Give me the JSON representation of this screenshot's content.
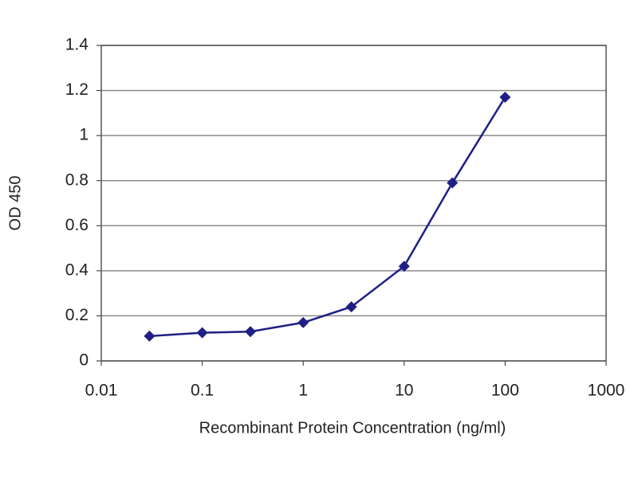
{
  "chart_data": {
    "type": "line",
    "x_label": "Recombinant Protein Concentration (ng/ml)",
    "y_label": "OD 450",
    "x": [
      0.03,
      0.1,
      0.3,
      1,
      3,
      10,
      30,
      100
    ],
    "series": [
      {
        "color": "#1f1f86",
        "values": [
          0.11,
          0.125,
          0.13,
          0.17,
          0.24,
          0.42,
          0.79,
          1.17
        ]
      }
    ],
    "xlim": [
      0.01,
      1000
    ],
    "xticks": [
      0.01,
      0.1,
      1,
      10,
      100,
      1000
    ],
    "xscale": "log",
    "ylim": [
      0,
      1.4
    ],
    "yticks": [
      0,
      0.2,
      0.4,
      0.6,
      0.8,
      1,
      1.2,
      1.4
    ],
    "grid": true
  }
}
